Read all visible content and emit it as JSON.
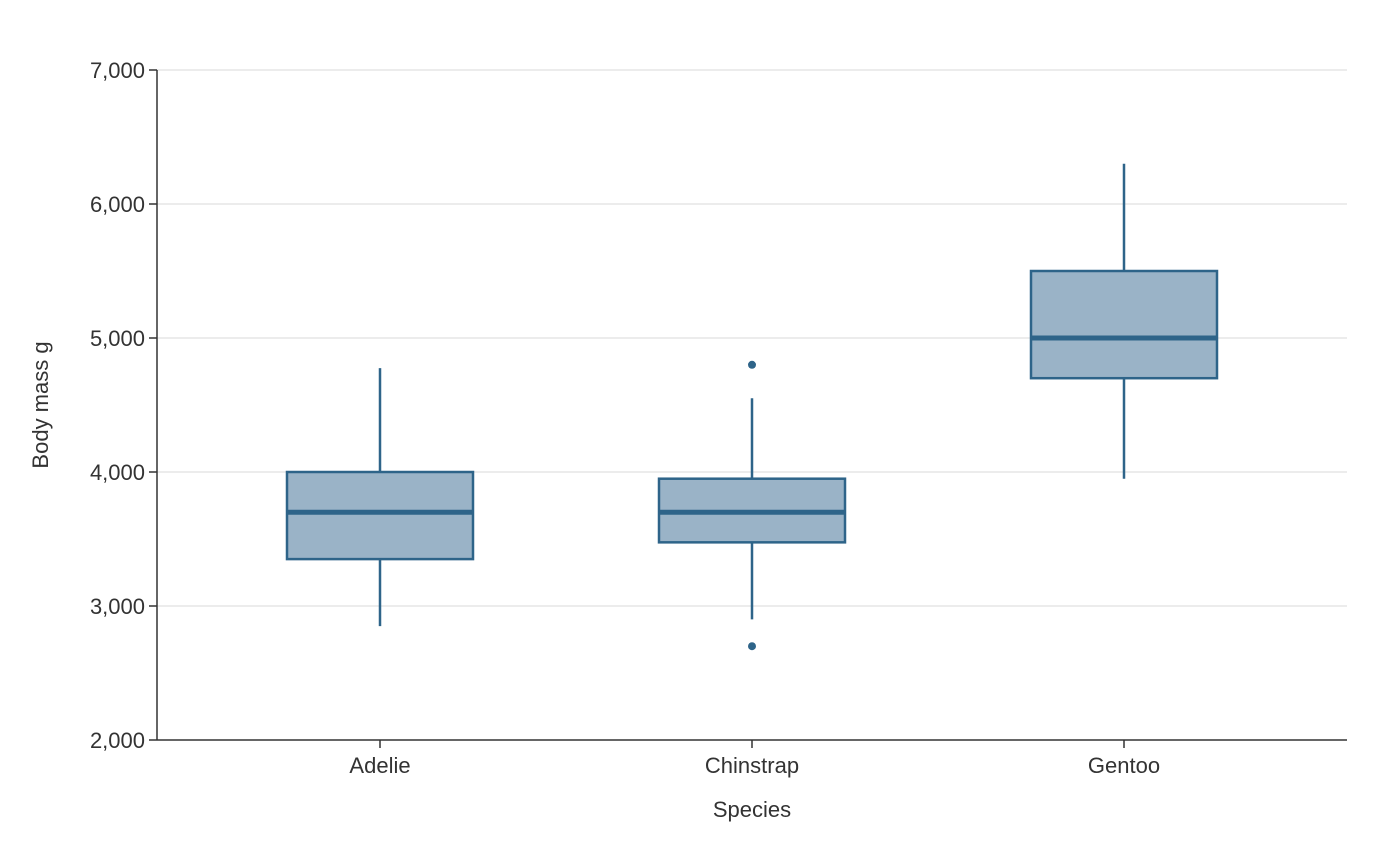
{
  "chart_data": {
    "type": "box",
    "title": "",
    "xlabel": "Species",
    "ylabel": "Body mass g",
    "ylim": [
      2000,
      7000
    ],
    "yticks": [
      2000,
      3000,
      4000,
      5000,
      6000,
      7000
    ],
    "ytick_labels": [
      "2,000",
      "3,000",
      "4,000",
      "5,000",
      "6,000",
      "7,000"
    ],
    "grid": true,
    "legend": "none",
    "box_fill": "#9ab3c7",
    "box_stroke": "#2e6489",
    "categories": [
      "Adelie",
      "Chinstrap",
      "Gentoo"
    ],
    "boxes": [
      {
        "category": "Adelie",
        "whisker_low": 2850,
        "q1": 3350,
        "median": 3700,
        "q3": 4000,
        "whisker_high": 4775,
        "outliers": []
      },
      {
        "category": "Chinstrap",
        "whisker_low": 2900,
        "q1": 3475,
        "median": 3700,
        "q3": 3950,
        "whisker_high": 4550,
        "outliers": [
          2700,
          4800
        ]
      },
      {
        "category": "Gentoo",
        "whisker_low": 3950,
        "q1": 4700,
        "median": 5000,
        "q3": 5500,
        "whisker_high": 6300,
        "outliers": []
      }
    ]
  }
}
